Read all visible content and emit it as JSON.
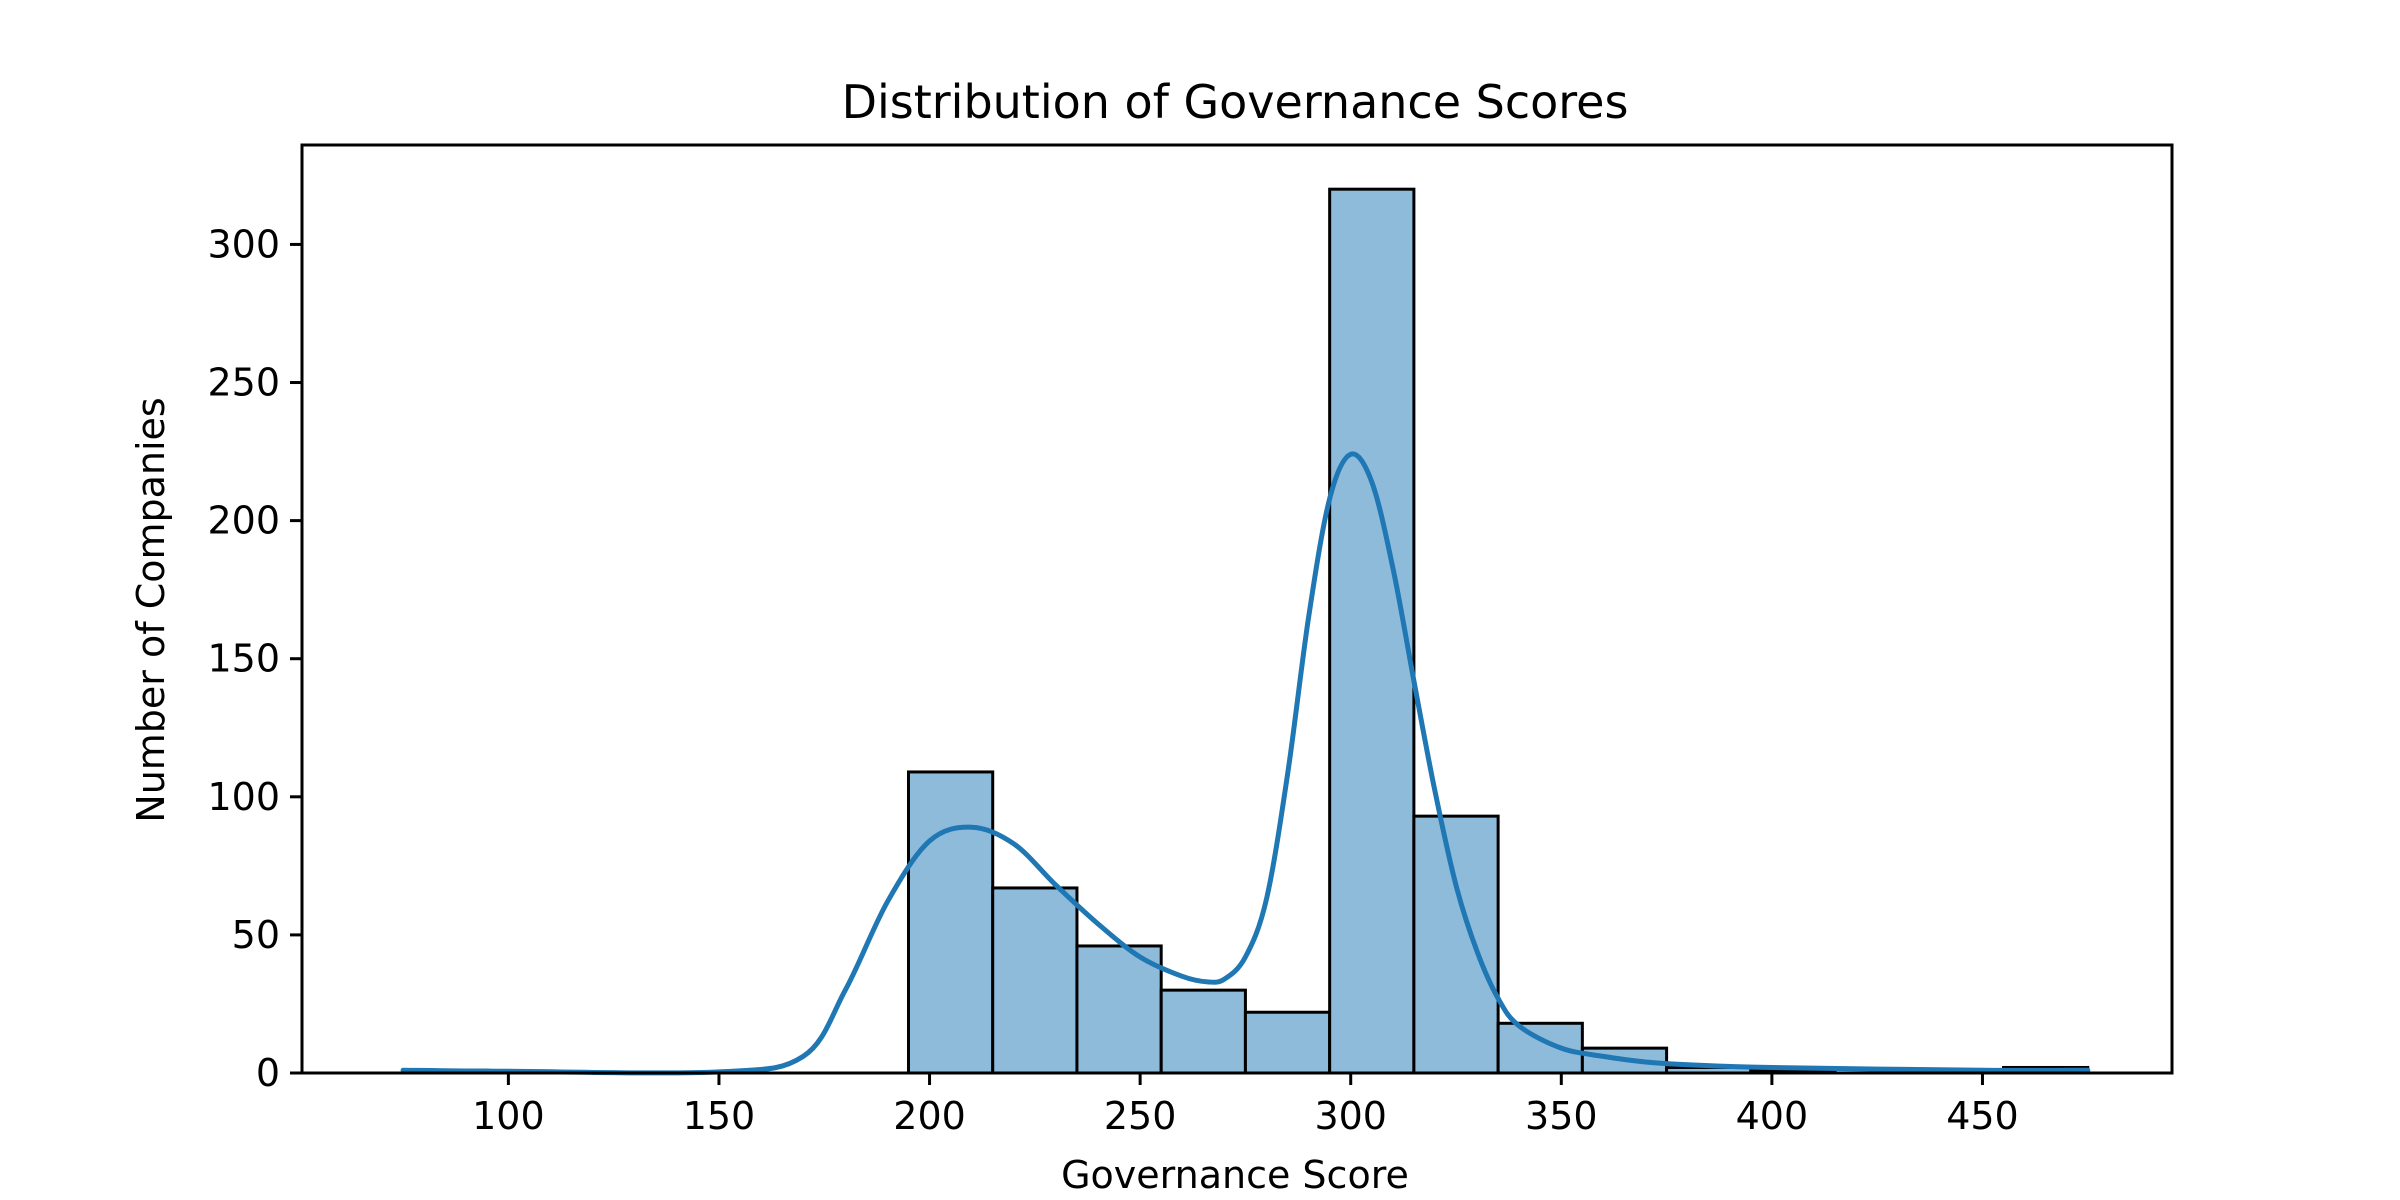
{
  "chart_data": {
    "type": "bar",
    "subtype": "histogram-with-kde",
    "title": "Distribution of Governance Scores",
    "xlabel": "Governance Score",
    "ylabel": "Number of Companies",
    "xlim": [
      51,
      495
    ],
    "ylim": [
      0,
      336
    ],
    "xticks": [
      100,
      150,
      200,
      250,
      300,
      350,
      400,
      450
    ],
    "yticks": [
      0,
      50,
      100,
      150,
      200,
      250,
      300
    ],
    "grid": false,
    "bins": [
      {
        "start": 75,
        "end": 95,
        "count": 1
      },
      {
        "start": 95,
        "end": 115,
        "count": 0
      },
      {
        "start": 115,
        "end": 135,
        "count": 0
      },
      {
        "start": 135,
        "end": 155,
        "count": 0
      },
      {
        "start": 155,
        "end": 175,
        "count": 0
      },
      {
        "start": 175,
        "end": 195,
        "count": 0
      },
      {
        "start": 195,
        "end": 215,
        "count": 109
      },
      {
        "start": 215,
        "end": 235,
        "count": 67
      },
      {
        "start": 235,
        "end": 255,
        "count": 46
      },
      {
        "start": 255,
        "end": 275,
        "count": 30
      },
      {
        "start": 275,
        "end": 295,
        "count": 22
      },
      {
        "start": 295,
        "end": 315,
        "count": 320
      },
      {
        "start": 315,
        "end": 335,
        "count": 93
      },
      {
        "start": 335,
        "end": 355,
        "count": 18
      },
      {
        "start": 355,
        "end": 375,
        "count": 9
      },
      {
        "start": 375,
        "end": 395,
        "count": 2
      },
      {
        "start": 395,
        "end": 415,
        "count": 1
      },
      {
        "start": 415,
        "end": 435,
        "count": 0
      },
      {
        "start": 435,
        "end": 455,
        "count": 0
      },
      {
        "start": 455,
        "end": 475,
        "count": 2
      }
    ],
    "kde": {
      "x": [
        75,
        100,
        150,
        170,
        180,
        190,
        200,
        210,
        220,
        230,
        240,
        250,
        260,
        266,
        270,
        275,
        280,
        285,
        290,
        295,
        300,
        305,
        310,
        315,
        320,
        325,
        330,
        335,
        340,
        350,
        360,
        370,
        380,
        400,
        450,
        475
      ],
      "y": [
        1,
        0.6,
        0.4,
        6,
        30,
        62,
        84,
        89,
        83,
        68,
        54,
        42,
        35,
        33,
        34,
        42,
        63,
        108,
        165,
        208,
        224,
        214,
        183,
        142,
        102,
        68,
        44,
        27,
        17,
        9,
        6,
        4,
        3,
        2,
        1,
        1
      ]
    },
    "colors": {
      "bar_fill": "#8fbbdb",
      "bar_edge": "#000000",
      "kde_line": "#1f77b4",
      "axis": "#000000"
    }
  }
}
